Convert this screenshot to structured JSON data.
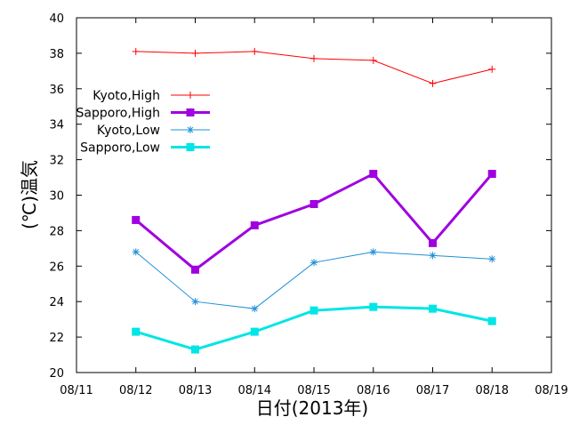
{
  "chart_data": {
    "type": "line",
    "xlabel": "日付(2013年)",
    "ylabel": "(℃)温気",
    "ylim": [
      20,
      40
    ],
    "y_ticks": [
      20,
      22,
      24,
      26,
      28,
      30,
      32,
      34,
      36,
      38,
      40
    ],
    "x_ticks": [
      "08/11",
      "08/12",
      "08/13",
      "08/14",
      "08/15",
      "08/16",
      "08/17",
      "08/18",
      "08/19"
    ],
    "categories": [
      "08/12",
      "08/13",
      "08/14",
      "08/15",
      "08/16",
      "08/17",
      "08/18"
    ],
    "grid": false,
    "legend_position": "upper-left",
    "series": [
      {
        "name": "Kyoto,High",
        "color": "#ff0000",
        "marker": "plus",
        "values": [
          38.1,
          38.0,
          38.1,
          37.7,
          37.6,
          36.3,
          37.1
        ]
      },
      {
        "name": "Sapporo,High",
        "color": "#a000e0",
        "marker": "square",
        "values": [
          28.6,
          25.8,
          28.3,
          29.5,
          31.2,
          27.3,
          31.2
        ]
      },
      {
        "name": "Kyoto,Low",
        "color": "#1e8fd8",
        "marker": "star",
        "values": [
          26.8,
          24.0,
          23.6,
          26.2,
          26.8,
          26.6,
          26.4
        ]
      },
      {
        "name": "Sapporo,Low",
        "color": "#00e5e5",
        "marker": "square",
        "values": [
          22.3,
          21.3,
          22.3,
          23.5,
          23.7,
          23.6,
          22.9
        ]
      }
    ]
  }
}
